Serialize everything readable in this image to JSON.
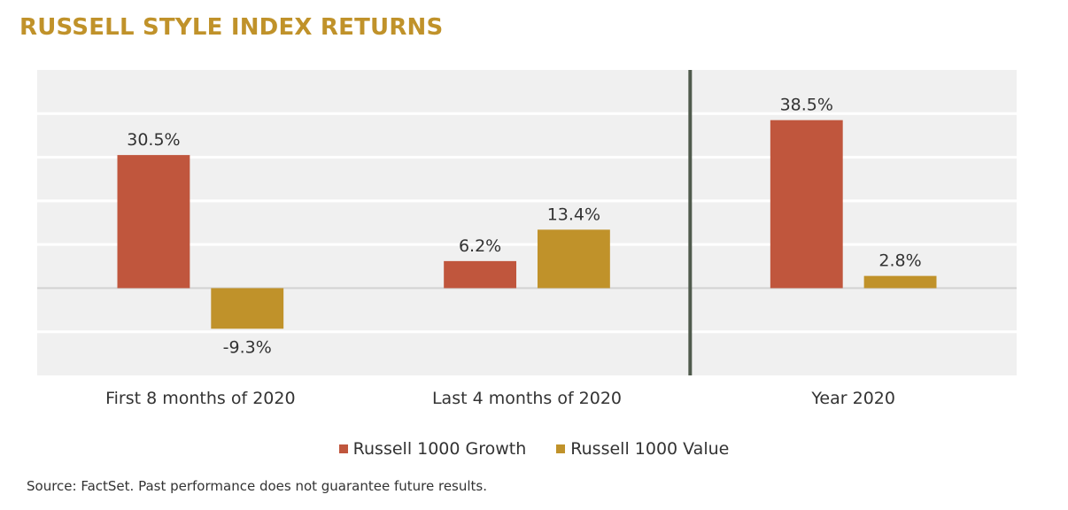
{
  "chart_data": {
    "type": "bar",
    "title": "RUSSELL STYLE INDEX RETURNS",
    "categories": [
      "First 8 months of 2020",
      "Last 4 months of 2020",
      "Year 2020"
    ],
    "series": [
      {
        "name": "Russell 1000 Growth",
        "color": "#C0563D",
        "values": [
          30.5,
          6.2,
          38.5
        ]
      },
      {
        "name": "Russell 1000 Value",
        "color": "#C0922A",
        "values": [
          -9.3,
          13.4,
          2.8
        ]
      }
    ],
    "data_labels": [
      [
        "30.5%",
        "6.2%",
        "38.5%"
      ],
      [
        "-9.3%",
        "13.4%",
        "2.8%"
      ]
    ],
    "ylim": [
      -20,
      50
    ],
    "grid": true,
    "legend_position": "bottom",
    "separator_before_category": "Year 2020"
  },
  "source_note": "Source: FactSet. Past performance does not guarantee future results."
}
